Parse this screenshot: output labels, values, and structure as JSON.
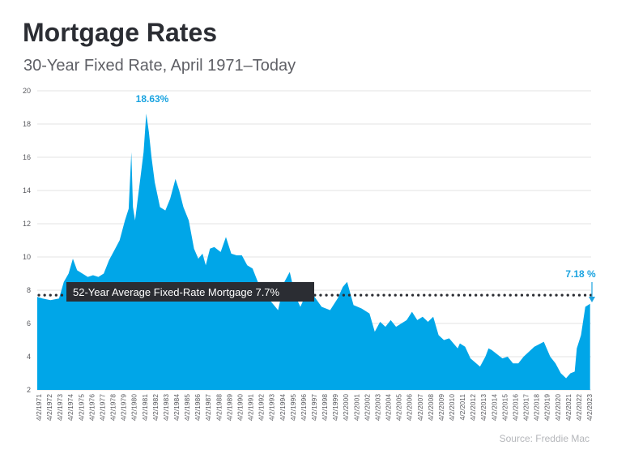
{
  "header": {
    "title": "Mortgage Rates",
    "subtitle": "30-Year Fixed Rate, April 1971–Today"
  },
  "footer": {
    "source": "Source: Freddie Mac"
  },
  "colors": {
    "area": "#00a6e8",
    "avg_line": "#2b2d33",
    "label_box": "#2b2d33",
    "callout": "#1aa3e0",
    "grid": "#e3e3e3"
  },
  "chart_data": {
    "type": "area",
    "title": "Mortgage Rates",
    "subtitle": "30-Year Fixed Rate, April 1971–Today",
    "ylim": [
      2,
      20
    ],
    "yticks": [
      2,
      4,
      6,
      8,
      10,
      12,
      14,
      16,
      18,
      20
    ],
    "grid": true,
    "x_tick_labels": [
      "4/2/1971",
      "4/2/1972",
      "4/2/1973",
      "4/2/1974",
      "4/2/1975",
      "4/2/1976",
      "4/2/1977",
      "4/2/1978",
      "4/2/1979",
      "4/2/1980",
      "4/2/1981",
      "4/2/1982",
      "4/2/1983",
      "4/2/1984",
      "4/2/1985",
      "4/2/1986",
      "4/2/1987",
      "4/2/1988",
      "4/2/1989",
      "4/2/1990",
      "4/2/1991",
      "4/2/1992",
      "4/2/1993",
      "4/2/1994",
      "4/2/1995",
      "4/2/1996",
      "4/2/1997",
      "4/2/1998",
      "4/2/1999",
      "4/2/2000",
      "4/2/2001",
      "4/2/2002",
      "4/2/2003",
      "4/2/2004",
      "4/2/2005",
      "4/2/2006",
      "4/2/2007",
      "4/2/2008",
      "4/2/2009",
      "4/2/2010",
      "4/2/2011",
      "4/2/2012",
      "4/2/2013",
      "4/2/2014",
      "4/2/2015",
      "4/2/2016",
      "4/2/2017",
      "4/2/2018",
      "4/2/2019",
      "4/2/2020",
      "4/2/2021",
      "4/2/2022",
      "4/2/2023"
    ],
    "series": [
      {
        "x": [
          1971.25,
          1971.75,
          1972.5,
          1973.3,
          1973.75,
          1974.2,
          1974.6,
          1975,
          1975.5,
          1976,
          1976.5,
          1977,
          1977.5,
          1978,
          1978.5,
          1979,
          1979.5,
          1979.85,
          1980.1,
          1980.25,
          1980.45,
          1980.8,
          1981,
          1981.25,
          1981.5,
          1981.75,
          1982,
          1982.3,
          1982.8,
          1983.3,
          1983.75,
          1984.25,
          1984.6,
          1985,
          1985.5,
          1986,
          1986.4,
          1986.8,
          1987.1,
          1987.5,
          1987.9,
          1988.5,
          1989,
          1989.5,
          1990,
          1990.5,
          1991,
          1991.5,
          1992,
          1992.5,
          1993,
          1993.9,
          1994.5,
          1995,
          1995.5,
          1996,
          1996.5,
          1997,
          1998,
          1998.8,
          1999.5,
          2000,
          2000.4,
          2001,
          2001.75,
          2002.5,
          2003,
          2003.5,
          2004,
          2004.5,
          2005,
          2006,
          2006.5,
          2007,
          2007.5,
          2008,
          2008.5,
          2009,
          2009.5,
          2010,
          2010.8,
          2011,
          2011.5,
          2012,
          2012.9,
          2013.4,
          2013.7,
          2014,
          2015,
          2015.5,
          2016,
          2016.5,
          2017,
          2018,
          2018.9,
          2019.5,
          2020,
          2020.5,
          2021,
          2021.4,
          2021.8,
          2022,
          2022.4,
          2022.8,
          2023.25
        ],
        "y": [
          7.6,
          7.5,
          7.4,
          7.5,
          8.5,
          9.0,
          9.9,
          9.2,
          9.0,
          8.8,
          8.9,
          8.8,
          9.0,
          9.8,
          10.4,
          11.0,
          12.2,
          12.9,
          16.3,
          13.0,
          12.2,
          14.0,
          15.0,
          16.3,
          18.63,
          17.5,
          16.0,
          14.5,
          13.0,
          12.8,
          13.5,
          14.7,
          14.0,
          13.0,
          12.2,
          10.5,
          9.9,
          10.2,
          9.5,
          10.5,
          10.6,
          10.3,
          11.2,
          10.2,
          10.1,
          10.1,
          9.5,
          9.3,
          8.5,
          8.3,
          7.5,
          6.8,
          8.5,
          9.1,
          7.7,
          7.0,
          7.7,
          7.9,
          7.0,
          6.8,
          7.5,
          8.2,
          8.5,
          7.1,
          6.9,
          6.6,
          5.5,
          6.1,
          5.8,
          6.2,
          5.8,
          6.2,
          6.7,
          6.2,
          6.4,
          6.1,
          6.4,
          5.3,
          5.0,
          5.1,
          4.5,
          4.8,
          4.6,
          3.9,
          3.4,
          4.0,
          4.5,
          4.4,
          3.9,
          4.0,
          3.6,
          3.6,
          4.0,
          4.6,
          4.9,
          4.0,
          3.6,
          3.0,
          2.7,
          3.0,
          3.1,
          4.5,
          5.3,
          7.0,
          7.18
        ]
      }
    ],
    "annotations": {
      "peak_label": "18.63%",
      "current_label": "7.18 %",
      "average_label": "52-Year Average Fixed-Rate Mortgage 7.7%",
      "average_value": 7.7
    }
  }
}
